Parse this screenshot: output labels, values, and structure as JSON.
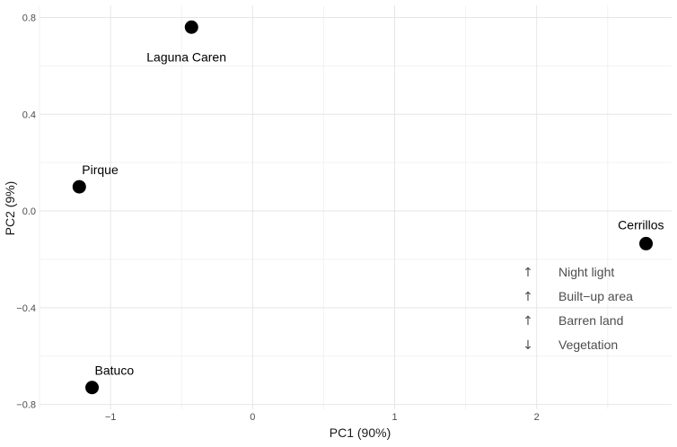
{
  "chart_data": {
    "type": "scatter",
    "xlabel": "PC1 (90%)",
    "ylabel": "PC2 (9%)",
    "xlim": [
      -1.5,
      2.95
    ],
    "ylim": [
      -0.82,
      0.85
    ],
    "x_ticks": [
      {
        "value": -1,
        "label": "−1"
      },
      {
        "value": 0,
        "label": "0"
      },
      {
        "value": 1,
        "label": "1"
      },
      {
        "value": 2,
        "label": "2"
      }
    ],
    "y_ticks": [
      {
        "value": -0.8,
        "label": "−0.8"
      },
      {
        "value": -0.4,
        "label": "−0.4"
      },
      {
        "value": 0.0,
        "label": "0.0"
      },
      {
        "value": 0.4,
        "label": "0.4"
      },
      {
        "value": 0.8,
        "label": "0.8"
      }
    ],
    "grid": true,
    "point_color": "#000000",
    "points": [
      {
        "name": "Laguna Caren",
        "x": -0.43,
        "y": 0.76,
        "label_position": "below"
      },
      {
        "name": "Pirque",
        "x": -1.22,
        "y": 0.1,
        "label_position": "above-right"
      },
      {
        "name": "Cerrillos",
        "x": 2.77,
        "y": -0.135,
        "label_position": "above-left"
      },
      {
        "name": "Batuco",
        "x": -1.13,
        "y": -0.73,
        "label_position": "above-right"
      }
    ],
    "legend": {
      "placement": "bottom-right",
      "items": [
        {
          "arrow": "↑",
          "label": "Night light"
        },
        {
          "arrow": "↑",
          "label": "Built−up area"
        },
        {
          "arrow": "↑",
          "label": "Barren land"
        },
        {
          "arrow": "↓",
          "label": "Vegetation"
        }
      ]
    }
  }
}
